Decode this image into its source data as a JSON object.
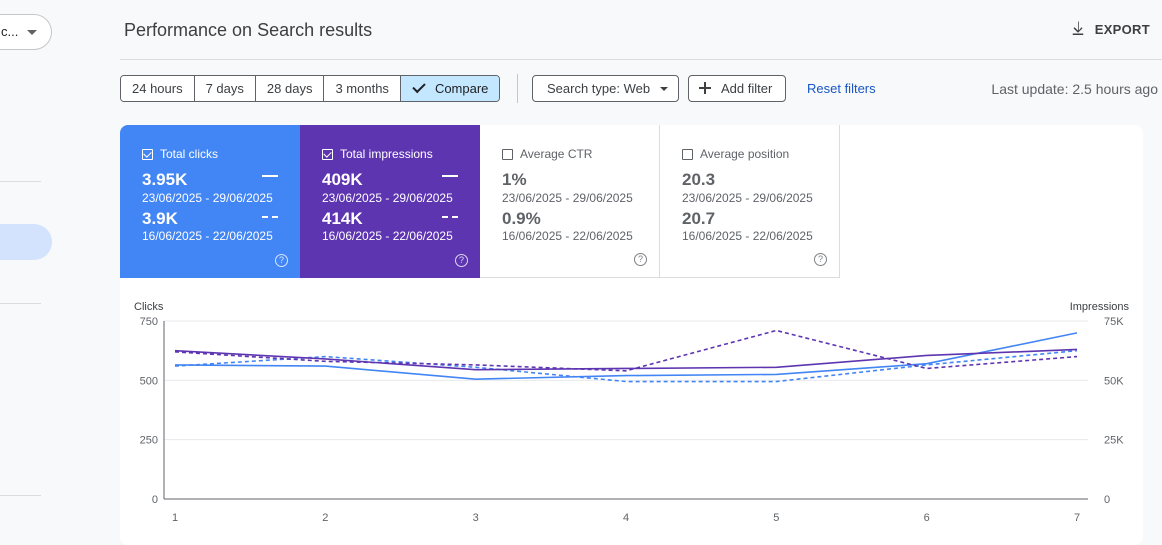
{
  "property_selector": {
    "label": "c..."
  },
  "header": {
    "title": "Performance on Search results",
    "export_label": "EXPORT"
  },
  "toolbar": {
    "ranges": [
      "24 hours",
      "7 days",
      "28 days",
      "3 months"
    ],
    "compare_label": "Compare",
    "search_type_label": "Search type: Web",
    "add_filter_label": "Add filter",
    "reset_filters_label": "Reset filters",
    "last_update": "Last update: 2.5 hours ago"
  },
  "metrics": [
    {
      "label": "Total clicks",
      "checked": true,
      "value": "3.95K",
      "dates": "23/06/2025 - 29/06/2025",
      "value2": "3.9K",
      "dates2": "16/06/2025 - 22/06/2025"
    },
    {
      "label": "Total impressions",
      "checked": true,
      "value": "409K",
      "dates": "23/06/2025 - 29/06/2025",
      "value2": "414K",
      "dates2": "16/06/2025 - 22/06/2025"
    },
    {
      "label": "Average CTR",
      "checked": false,
      "value": "1%",
      "dates": "23/06/2025 - 29/06/2025",
      "value2": "0.9%",
      "dates2": "16/06/2025 - 22/06/2025"
    },
    {
      "label": "Average position",
      "checked": false,
      "value": "20.3",
      "dates": "23/06/2025 - 29/06/2025",
      "value2": "20.7",
      "dates2": "16/06/2025 - 22/06/2025"
    }
  ],
  "colors": {
    "clicks": "#4285f4",
    "impressions": "#5e35b1",
    "link": "#1a56c4",
    "compare_active": "#c2e7ff"
  },
  "chart_data": {
    "type": "line",
    "x": [
      1,
      2,
      3,
      4,
      5,
      6,
      7
    ],
    "ylabel_left": "Clicks",
    "ylabel_right": "Impressions",
    "yticks_left": [
      "0",
      "250",
      "500",
      "750"
    ],
    "yticks_right": [
      "0",
      "25K",
      "50K",
      "75K"
    ],
    "ylim_left": [
      0,
      750
    ],
    "ylim_right": [
      0,
      75000
    ],
    "series": [
      {
        "axis": "left",
        "style": "solid",
        "color": "#4285f4",
        "values": [
          565,
          560,
          505,
          520,
          525,
          570,
          700
        ]
      },
      {
        "axis": "left",
        "style": "dashed",
        "color": "#4285f4",
        "values": [
          560,
          600,
          555,
          495,
          495,
          565,
          625
        ]
      },
      {
        "axis": "right",
        "style": "solid",
        "color": "#5e35b1",
        "values": [
          62500,
          59000,
          54500,
          55000,
          55500,
          60500,
          63000
        ]
      },
      {
        "axis": "right",
        "style": "dashed",
        "color": "#5e35b1",
        "values": [
          62000,
          58000,
          56500,
          54000,
          71000,
          55000,
          60000
        ]
      }
    ]
  }
}
